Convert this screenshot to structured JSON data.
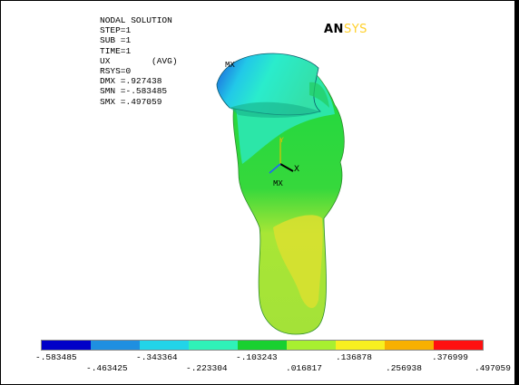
{
  "title": "NODAL SOLUTION",
  "info_lines": [
    "STEP=1",
    "SUB =1",
    "TIME=1",
    "UX        (AVG)",
    "RSYS=0",
    "DMX =.927438",
    "SMN =-.583485",
    "SMX =.497059"
  ],
  "logo": {
    "left": "AN",
    "right": "SYS"
  },
  "markers": {
    "max_top": "MX",
    "max_mid": "MX"
  },
  "axes": {
    "x": "X",
    "y": "Y"
  },
  "legend": {
    "colors": [
      "#0000c8",
      "#1f8fe0",
      "#22d4e8",
      "#2ff2b8",
      "#18d030",
      "#a8f030",
      "#f8f020",
      "#f8b000",
      "#ff1010"
    ],
    "ticks_top": [
      "-.583485",
      "-.343364",
      "-.103243",
      ".136878",
      ".376999"
    ],
    "ticks_bottom": [
      "-.463425",
      "-.223304",
      ".016817",
      ".256938",
      ".497059"
    ]
  }
}
